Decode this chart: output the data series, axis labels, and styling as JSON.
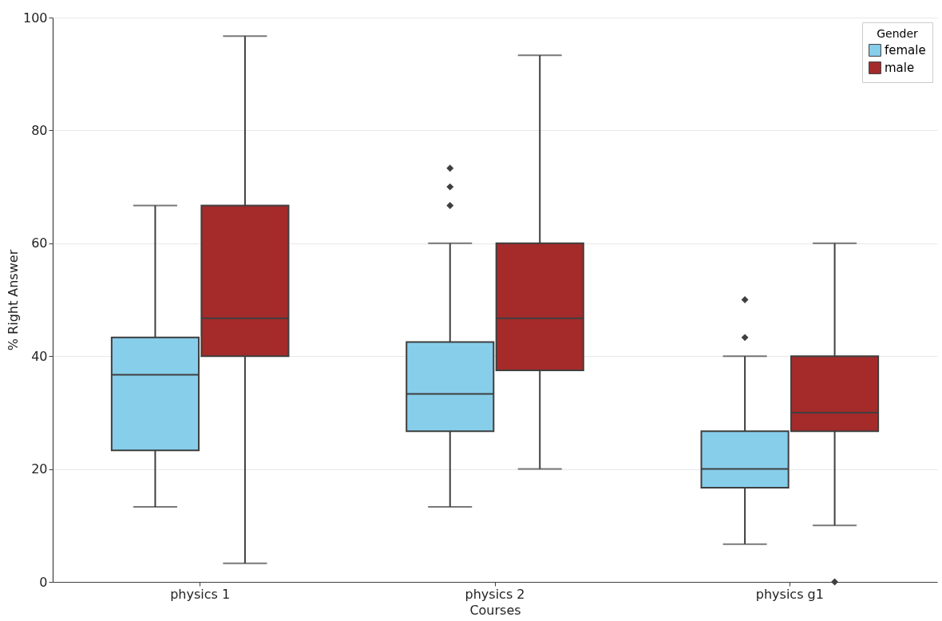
{
  "chart_data": {
    "type": "box",
    "xlabel": "Courses",
    "ylabel": "% Right Answer",
    "legend_title": "Gender",
    "categories": [
      "physics 1",
      "physics 2",
      "physics g1"
    ],
    "series": [
      {
        "name": "female",
        "color": "#87ceeb",
        "boxes": [
          {
            "low": 13.3,
            "q1": 23.3,
            "median": 36.7,
            "q3": 43.3,
            "high": 66.7
          },
          {
            "low": 13.3,
            "q1": 26.7,
            "median": 33.3,
            "q3": 42.5,
            "high": 60,
            "outliers": [
              66.7,
              70,
              73.3
            ]
          },
          {
            "low": 6.7,
            "q1": 16.7,
            "median": 20,
            "q3": 26.7,
            "high": 40,
            "outliers": [
              43.3,
              50
            ]
          }
        ]
      },
      {
        "name": "male",
        "color": "#a52a2a",
        "boxes": [
          {
            "low": 3.3,
            "q1": 40,
            "median": 46.7,
            "q3": 66.7,
            "high": 96.7
          },
          {
            "low": 20,
            "q1": 37.5,
            "median": 46.7,
            "q3": 60,
            "high": 93.3
          },
          {
            "low": 10,
            "q1": 26.7,
            "median": 30,
            "q3": 40,
            "high": 60,
            "outliers": [
              0
            ]
          }
        ]
      }
    ],
    "ylim": [
      0,
      100
    ],
    "yticks": [
      0,
      20,
      40,
      60,
      80,
      100
    ],
    "grid": "y",
    "legend": "top right",
    "marker": "diamond"
  }
}
